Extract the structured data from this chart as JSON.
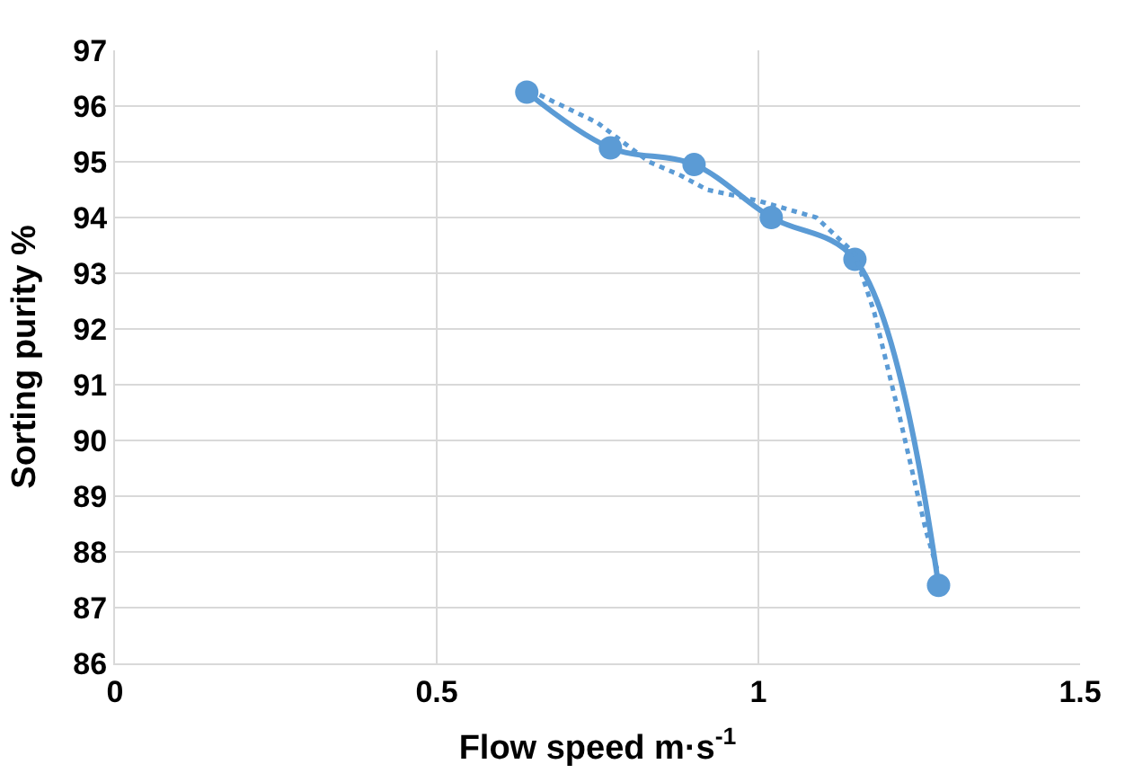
{
  "chart_data": {
    "type": "line",
    "xlabel": "Flow speed m·s$^{-1}$",
    "ylabel": "Sorting purity %",
    "series": [
      {
        "color": "#5b9bd5",
        "marker": "circle",
        "line_style": "solid",
        "x": [
          0.64,
          0.77,
          0.9,
          1.02,
          1.15,
          1.28
        ],
        "values": [
          96.25,
          95.25,
          94.95,
          94.0,
          93.25,
          87.4
        ]
      },
      {
        "color": "#5b9bd5",
        "marker": "none",
        "line_style": "dotted",
        "x": [
          0.66,
          0.75,
          0.83,
          0.88,
          0.92,
          1.0,
          1.09,
          1.15,
          1.18,
          1.22,
          1.26,
          1.28
        ],
        "values": [
          96.2,
          95.7,
          95.0,
          94.75,
          94.5,
          94.3,
          94.0,
          93.35,
          92.3,
          90.4,
          88.4,
          87.6
        ]
      }
    ],
    "xlim": [
      0,
      1.5
    ],
    "xticks": [
      0,
      0.5,
      1,
      1.5
    ],
    "ylim": [
      86,
      97
    ],
    "yticks": [
      86,
      87,
      88,
      89,
      90,
      91,
      92,
      93,
      94,
      95,
      96,
      97
    ],
    "grid": true
  }
}
